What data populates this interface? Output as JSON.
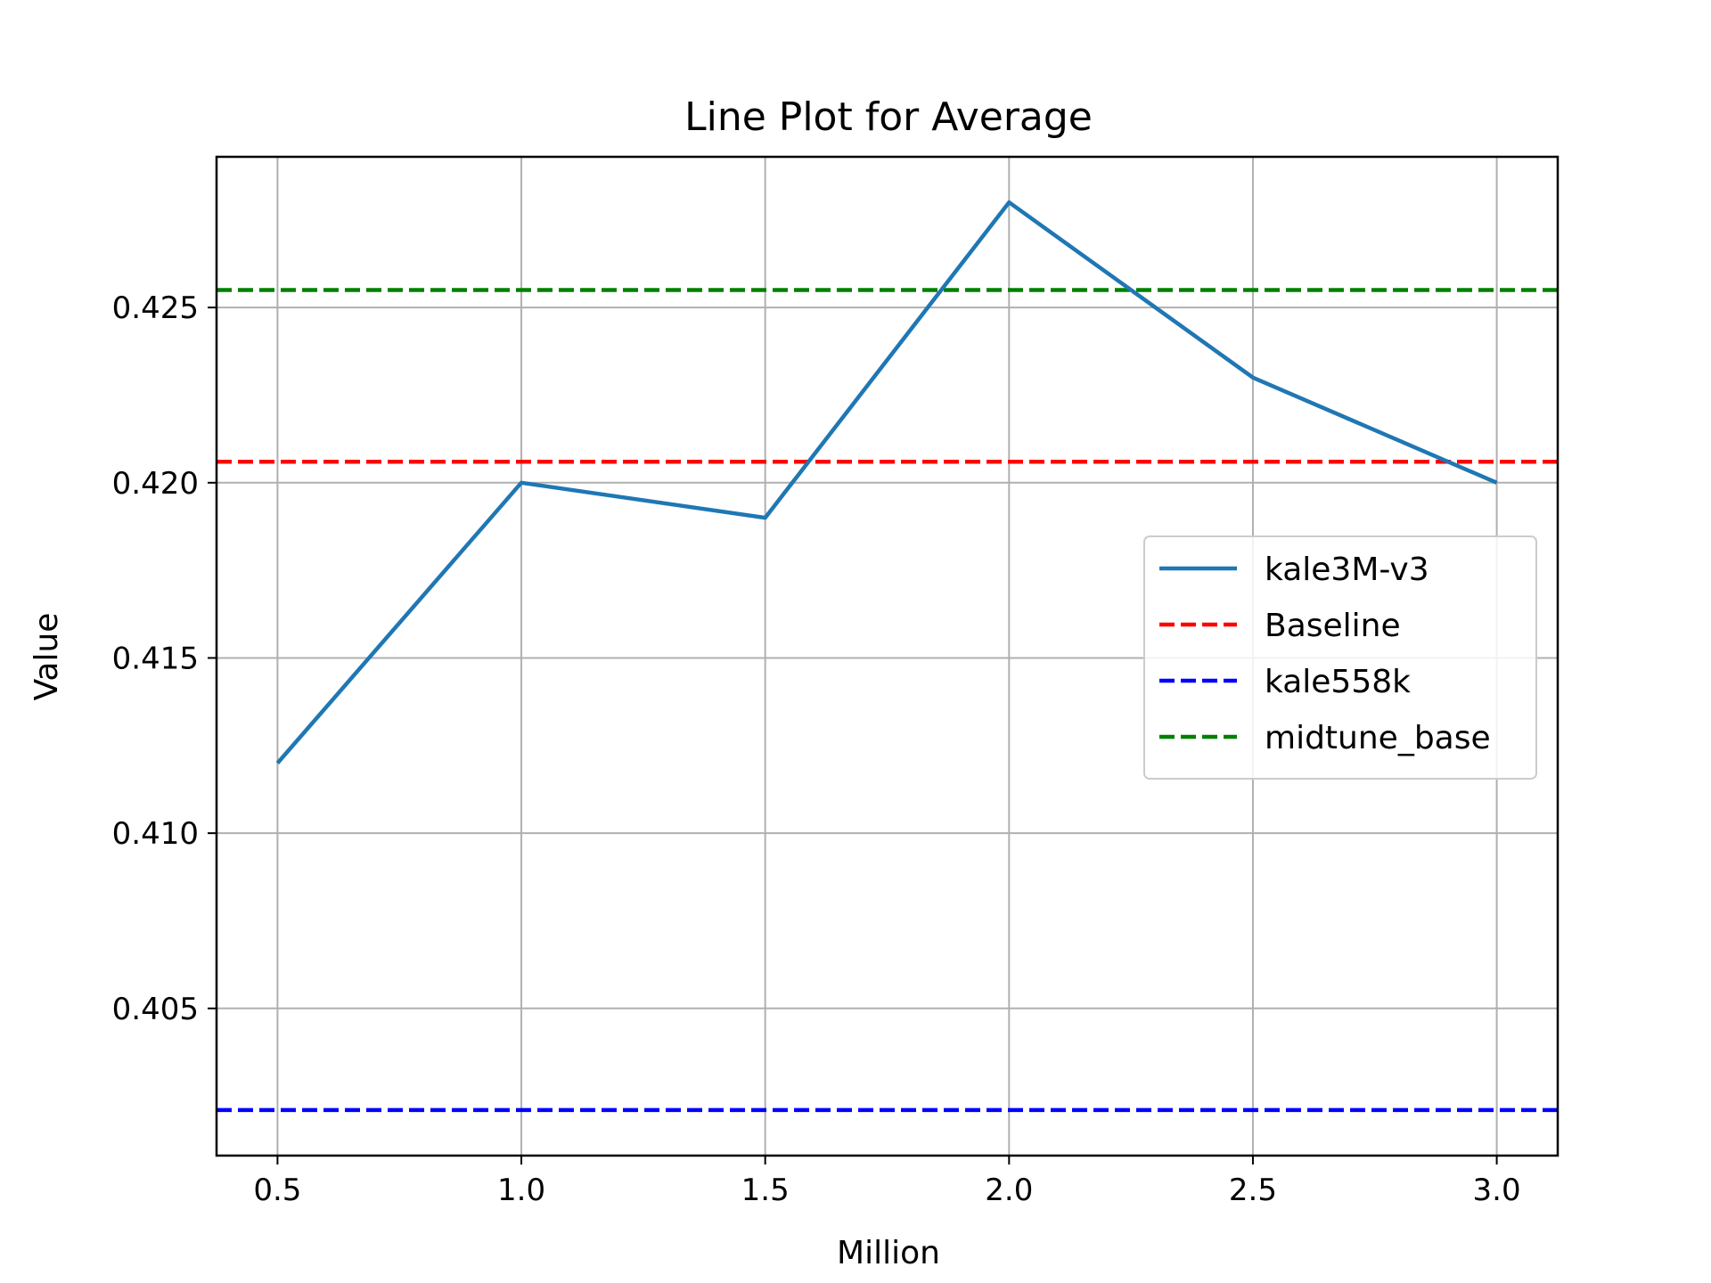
{
  "chart_data": {
    "type": "line",
    "title": "Line Plot for Average",
    "xlabel": "Million",
    "ylabel": "Value",
    "x": [
      0.5,
      1.0,
      1.5,
      2.0,
      2.5,
      3.0
    ],
    "x_tick_values": [
      0.5,
      1.0,
      1.5,
      2.0,
      2.5,
      3.0
    ],
    "x_tick_labels": [
      "0.5",
      "1.0",
      "1.5",
      "2.0",
      "2.5",
      "3.0"
    ],
    "y_tick_values": [
      0.405,
      0.41,
      0.415,
      0.42,
      0.425
    ],
    "y_tick_labels": [
      "0.405",
      "0.410",
      "0.415",
      "0.420",
      "0.425"
    ],
    "xlim": [
      0.375,
      3.125
    ],
    "ylim": [
      0.4008,
      0.4293
    ],
    "grid": true,
    "legend_placement": "center-right",
    "series": [
      {
        "name": "kale3M-v3",
        "style": "solid",
        "color": "#1f77b4",
        "values": [
          0.412,
          0.42,
          0.419,
          0.428,
          0.423,
          0.42
        ]
      }
    ],
    "reference_lines": [
      {
        "name": "Baseline",
        "value": 0.4206,
        "color": "#ff0000",
        "style": "dashed"
      },
      {
        "name": "kale558k",
        "value": 0.4021,
        "color": "#0000ff",
        "style": "dashed"
      },
      {
        "name": "midtune_base",
        "value": 0.4255,
        "color": "#008000",
        "style": "dashed"
      }
    ]
  }
}
